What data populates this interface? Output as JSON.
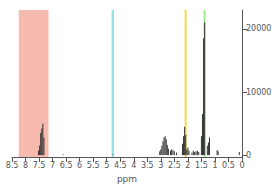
{
  "chart_data": {
    "type": "stem",
    "xlabel": "ppm",
    "color": "#333333",
    "x": [
      7.32,
      7.36,
      7.4,
      7.44,
      7.48,
      7.52,
      6.6,
      4.77,
      2.72,
      2.76,
      2.8,
      2.84,
      2.88,
      2.92,
      2.96,
      3.0,
      3.04,
      2.5,
      2.55,
      2.6,
      2.64,
      2.42,
      2.08,
      2.12,
      2.16,
      2.2,
      1.96,
      2.0,
      2.04,
      1.75,
      1.8,
      1.85,
      1.6,
      1.65,
      1.7,
      1.38,
      1.42,
      1.46,
      1.5,
      1.2,
      1.24,
      1.28,
      0.88,
      0.92,
      0.1
    ],
    "values": [
      2800,
      5000,
      4200,
      3500,
      1500,
      700,
      100,
      90,
      1000,
      1600,
      2500,
      3000,
      2800,
      2200,
      1500,
      900,
      600,
      600,
      800,
      900,
      700,
      400,
      3200,
      4500,
      3000,
      1800,
      700,
      1200,
      900,
      500,
      700,
      400,
      500,
      700,
      600,
      21000,
      18500,
      6500,
      3000,
      2800,
      2000,
      1500,
      600,
      800,
      500
    ],
    "regions": [
      {
        "x0": 7.15,
        "x1": 8.25,
        "color": "#f4a99b"
      },
      {
        "x0": 4.73,
        "x1": 4.82,
        "color": "#7fd8e8"
      },
      {
        "x0": 2.05,
        "x1": 2.12,
        "color": "#f5cc00"
      },
      {
        "x0": 1.35,
        "x1": 1.42,
        "color": "#88e070"
      }
    ],
    "xlim": [
      8.5,
      0
    ],
    "xticks": [
      8.5,
      8.0,
      7.5,
      7.0,
      6.5,
      6.0,
      5.5,
      5.0,
      4.5,
      4.0,
      3.5,
      3.0,
      2.5,
      2.0,
      1.5,
      1.0,
      0.5,
      0.0
    ],
    "ylim": [
      -300,
      23000
    ],
    "yticks": [
      0,
      10000,
      20000
    ],
    "grid": false
  }
}
